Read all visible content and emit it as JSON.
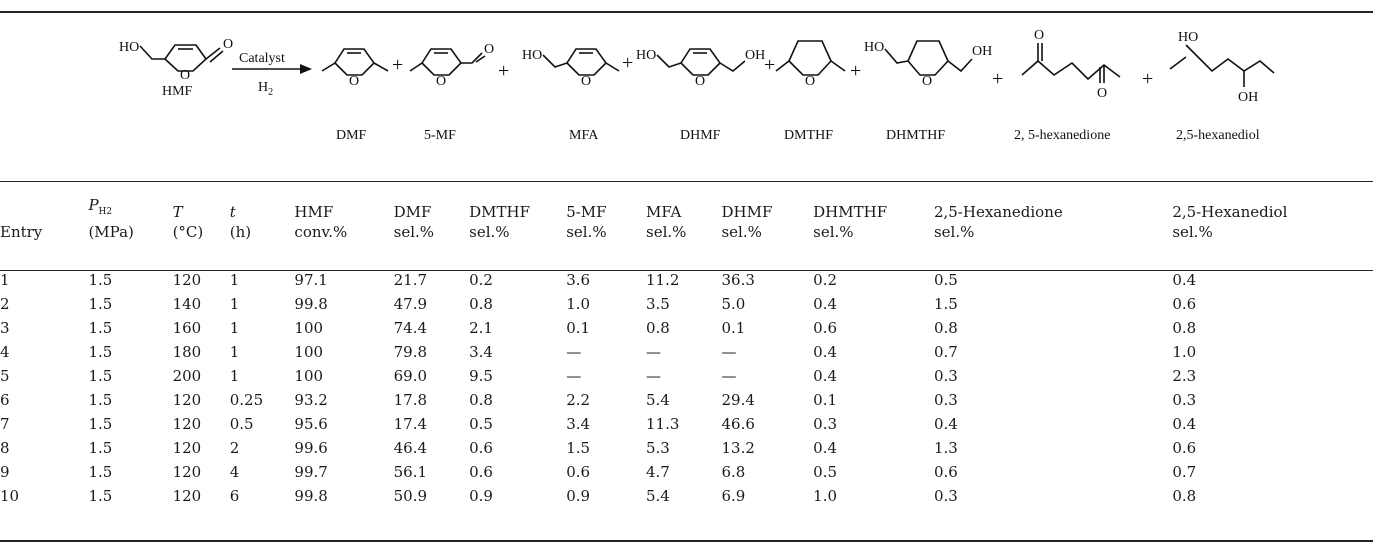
{
  "scheme": {
    "reactant": "HMF",
    "conditions": {
      "catalyst": "Catalyst",
      "gas": "H2"
    },
    "products": [
      "DMF",
      "5-MF",
      "MFA",
      "DHMF",
      "DMTHF",
      "DHMTHF",
      "2, 5-hexanedione",
      "2,5-hexanediol"
    ]
  },
  "table": {
    "headers": [
      {
        "line1": "",
        "line2": "Entry"
      },
      {
        "line1": "P",
        "sub": "H2",
        "line2": "(MPa)"
      },
      {
        "line1": "T",
        "line2": "(°C)"
      },
      {
        "line1": "t",
        "line2": "(h)"
      },
      {
        "line1": "HMF",
        "line2": "conv.%"
      },
      {
        "line1": "DMF",
        "line2": "sel.%"
      },
      {
        "line1": "DMTHF",
        "line2": "sel.%"
      },
      {
        "line1": "5-MF",
        "line2": "sel.%"
      },
      {
        "line1": "MFA",
        "line2": "sel.%"
      },
      {
        "line1": "DHMF",
        "line2": "sel.%"
      },
      {
        "line1": "DHMTHF",
        "line2": "sel.%"
      },
      {
        "line1": "2,5-Hexanedione",
        "line2": "sel.%"
      },
      {
        "line1": "2,5-Hexanediol",
        "line2": "sel.%"
      }
    ],
    "rows": [
      [
        "1",
        "1.5",
        "120",
        "1",
        "97.1",
        "21.7",
        "0.2",
        "3.6",
        "11.2",
        "36.3",
        "0.2",
        "0.5",
        "0.4"
      ],
      [
        "2",
        "1.5",
        "140",
        "1",
        "99.8",
        "47.9",
        "0.8",
        "1.0",
        "3.5",
        "5.0",
        "0.4",
        "1.5",
        "0.6"
      ],
      [
        "3",
        "1.5",
        "160",
        "1",
        "100",
        "74.4",
        "2.1",
        "0.1",
        "0.8",
        "0.1",
        "0.6",
        "0.8",
        "0.8"
      ],
      [
        "4",
        "1.5",
        "180",
        "1",
        "100",
        "79.8",
        "3.4",
        "—",
        "—",
        "—",
        "0.4",
        "0.7",
        "1.0"
      ],
      [
        "5",
        "1.5",
        "200",
        "1",
        "100",
        "69.0",
        "9.5",
        "—",
        "—",
        "—",
        "0.4",
        "0.3",
        "2.3"
      ],
      [
        "6",
        "1.5",
        "120",
        "0.25",
        "93.2",
        "17.8",
        "0.8",
        "2.2",
        "5.4",
        "29.4",
        "0.1",
        "0.3",
        "0.3"
      ],
      [
        "7",
        "1.5",
        "120",
        "0.5",
        "95.6",
        "17.4",
        "0.5",
        "3.4",
        "11.3",
        "46.6",
        "0.3",
        "0.4",
        "0.4"
      ],
      [
        "8",
        "1.5",
        "120",
        "2",
        "99.6",
        "46.4",
        "0.6",
        "1.5",
        "5.3",
        "13.2",
        "0.4",
        "1.3",
        "0.6"
      ],
      [
        "9",
        "1.5",
        "120",
        "4",
        "99.7",
        "56.1",
        "0.6",
        "0.6",
        "4.7",
        "6.8",
        "0.5",
        "0.6",
        "0.7"
      ],
      [
        "10",
        "1.5",
        "120",
        "6",
        "99.8",
        "50.9",
        "0.9",
        "0.9",
        "5.4",
        "6.9",
        "1.0",
        "0.3",
        "0.8"
      ]
    ]
  }
}
